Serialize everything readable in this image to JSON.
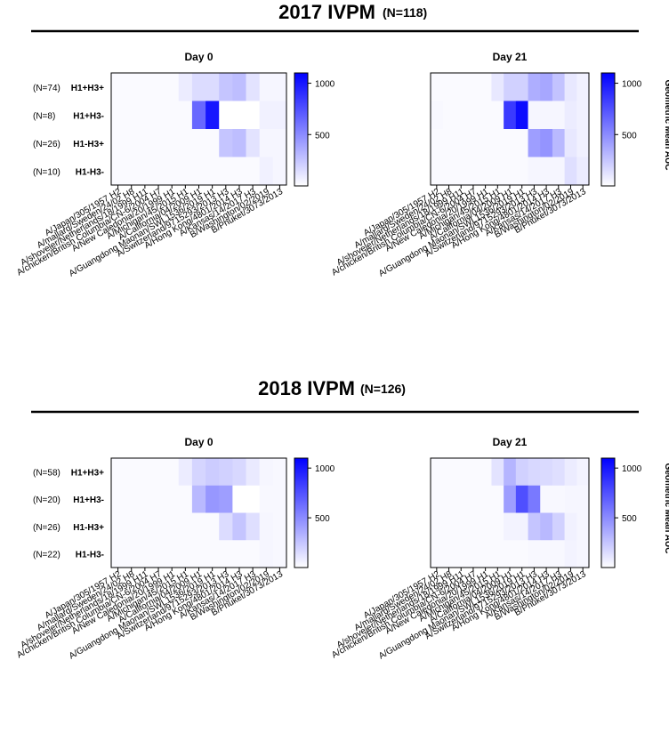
{
  "colors": {
    "high": "#0000ff",
    "low": "#ffffff",
    "axis": "#000000"
  },
  "strains": [
    "A/Japan/305/1957 H2",
    "A/mallard/Sweden/24/02 H8",
    "A/shoveler/Netherlands/18/1999 H11",
    "A/chicken/British Columbia/CN-6/2004 H7",
    "A/New Caledonia/20/1999 H1",
    "A/Michigan/45/2015 H1",
    "A/California/04/2009 H1",
    "A/Guangdong Maonan/SWL1536/2019 H1",
    "A/Switzerland/9715293/2013 H3",
    "A/Hong Kong/4801/2014 H3",
    "A/Kansas/14/2017 H3",
    "B/Washington/02/2019",
    "B/Phuket/3073/2013"
  ],
  "panels": [
    {
      "title": "2017 IVPM",
      "n_label": "(N=118)",
      "groups": [
        {
          "n": "(N=74)",
          "label": "H1+H3+"
        },
        {
          "n": "(N=8)",
          "label": "H1+H3-"
        },
        {
          "n": "(N=26)",
          "label": "H1-H3+"
        },
        {
          "n": "(N=10)",
          "label": "H1-H3-"
        }
      ]
    },
    {
      "title": "2018 IVPM",
      "n_label": "(N=126)",
      "groups": [
        {
          "n": "(N=58)",
          "label": "H1+H3+"
        },
        {
          "n": "(N=20)",
          "label": "H1+H3-"
        },
        {
          "n": "(N=26)",
          "label": "H1-H3+"
        },
        {
          "n": "(N=22)",
          "label": "H1-H3-"
        }
      ]
    }
  ],
  "colorbar": {
    "label": "Geometric  Mean AUC",
    "ticks": [
      1000,
      500
    ],
    "ticklabels": [
      "1000",
      "500"
    ]
  },
  "chart_data": [
    {
      "type": "heatmap",
      "title": "Day 0",
      "panel": "2017 IVPM",
      "zlim": [
        0,
        1100
      ],
      "values": [
        [
          20,
          20,
          20,
          20,
          20,
          80,
          150,
          150,
          250,
          280,
          120,
          40,
          40
        ],
        [
          20,
          20,
          20,
          20,
          20,
          20,
          650,
          1000,
          0,
          0,
          0,
          60,
          60
        ],
        [
          20,
          20,
          20,
          20,
          20,
          20,
          20,
          20,
          250,
          280,
          120,
          40,
          40
        ],
        [
          20,
          20,
          20,
          20,
          20,
          20,
          20,
          20,
          20,
          20,
          20,
          60,
          40
        ]
      ]
    },
    {
      "type": "heatmap",
      "title": "Day 21",
      "panel": "2017 IVPM",
      "zlim": [
        0,
        1100
      ],
      "values": [
        [
          20,
          20,
          20,
          20,
          20,
          100,
          200,
          200,
          350,
          380,
          260,
          100,
          60
        ],
        [
          30,
          20,
          20,
          20,
          20,
          20,
          850,
          1050,
          40,
          40,
          40,
          80,
          60
        ],
        [
          20,
          20,
          20,
          20,
          20,
          20,
          20,
          20,
          420,
          460,
          300,
          100,
          60
        ],
        [
          20,
          20,
          20,
          20,
          20,
          20,
          20,
          20,
          40,
          40,
          40,
          140,
          80
        ]
      ]
    },
    {
      "type": "heatmap",
      "title": "Day 0",
      "panel": "2018 IVPM",
      "zlim": [
        0,
        1100
      ],
      "values": [
        [
          20,
          20,
          20,
          20,
          20,
          80,
          180,
          220,
          200,
          170,
          90,
          40,
          30
        ],
        [
          20,
          20,
          20,
          20,
          20,
          20,
          300,
          450,
          420,
          0,
          0,
          30,
          30
        ],
        [
          20,
          20,
          20,
          20,
          20,
          20,
          20,
          20,
          150,
          250,
          140,
          40,
          30
        ],
        [
          20,
          20,
          20,
          20,
          20,
          20,
          20,
          20,
          20,
          20,
          20,
          40,
          30
        ]
      ]
    },
    {
      "type": "heatmap",
      "title": "Day 21",
      "panel": "2018 IVPM",
      "zlim": [
        0,
        1100
      ],
      "values": [
        [
          20,
          20,
          20,
          20,
          20,
          120,
          320,
          200,
          170,
          160,
          140,
          80,
          50
        ],
        [
          20,
          20,
          20,
          20,
          20,
          20,
          420,
          760,
          580,
          30,
          30,
          40,
          40
        ],
        [
          20,
          20,
          20,
          20,
          20,
          20,
          50,
          50,
          250,
          300,
          200,
          60,
          40
        ],
        [
          20,
          20,
          20,
          20,
          20,
          20,
          20,
          20,
          30,
          30,
          30,
          50,
          40
        ]
      ]
    }
  ]
}
